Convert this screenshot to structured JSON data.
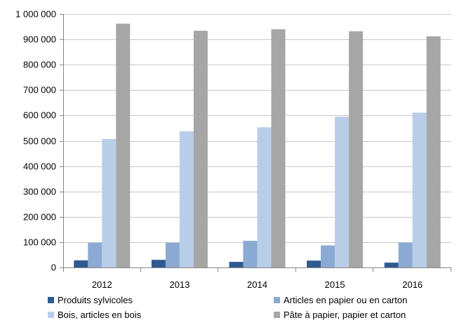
{
  "chart_data": {
    "type": "bar",
    "title": "",
    "xlabel": "",
    "ylabel": "",
    "categories": [
      "2012",
      "2013",
      "2014",
      "2015",
      "2016"
    ],
    "series": [
      {
        "name": "Produits sylvicoles",
        "color": "#2f5a8f",
        "values": [
          28000,
          30000,
          22000,
          27000,
          19000
        ]
      },
      {
        "name": "Articles en papier ou en carton",
        "color": "#8aaad3",
        "values": [
          97000,
          97000,
          105000,
          87000,
          98000
        ]
      },
      {
        "name": "Bois, articles en bois",
        "color": "#b8cde8",
        "values": [
          507000,
          537000,
          553000,
          595000,
          611000
        ]
      },
      {
        "name": "Pâte à papier, papier et carton",
        "color": "#a6a6a6",
        "values": [
          962000,
          934000,
          940000,
          932000,
          912000
        ]
      }
    ],
    "ylim": [
      0,
      1000000
    ],
    "yticks": [
      0,
      100000,
      200000,
      300000,
      400000,
      500000,
      600000,
      700000,
      800000,
      900000,
      1000000
    ],
    "ytick_labels": [
      "0",
      "100 000",
      "200 000",
      "300 000",
      "400 000",
      "500 000",
      "600 000",
      "700 000",
      "800 000",
      "900 000",
      "1 000 000"
    ],
    "grid": true,
    "legend_position": "bottom"
  }
}
